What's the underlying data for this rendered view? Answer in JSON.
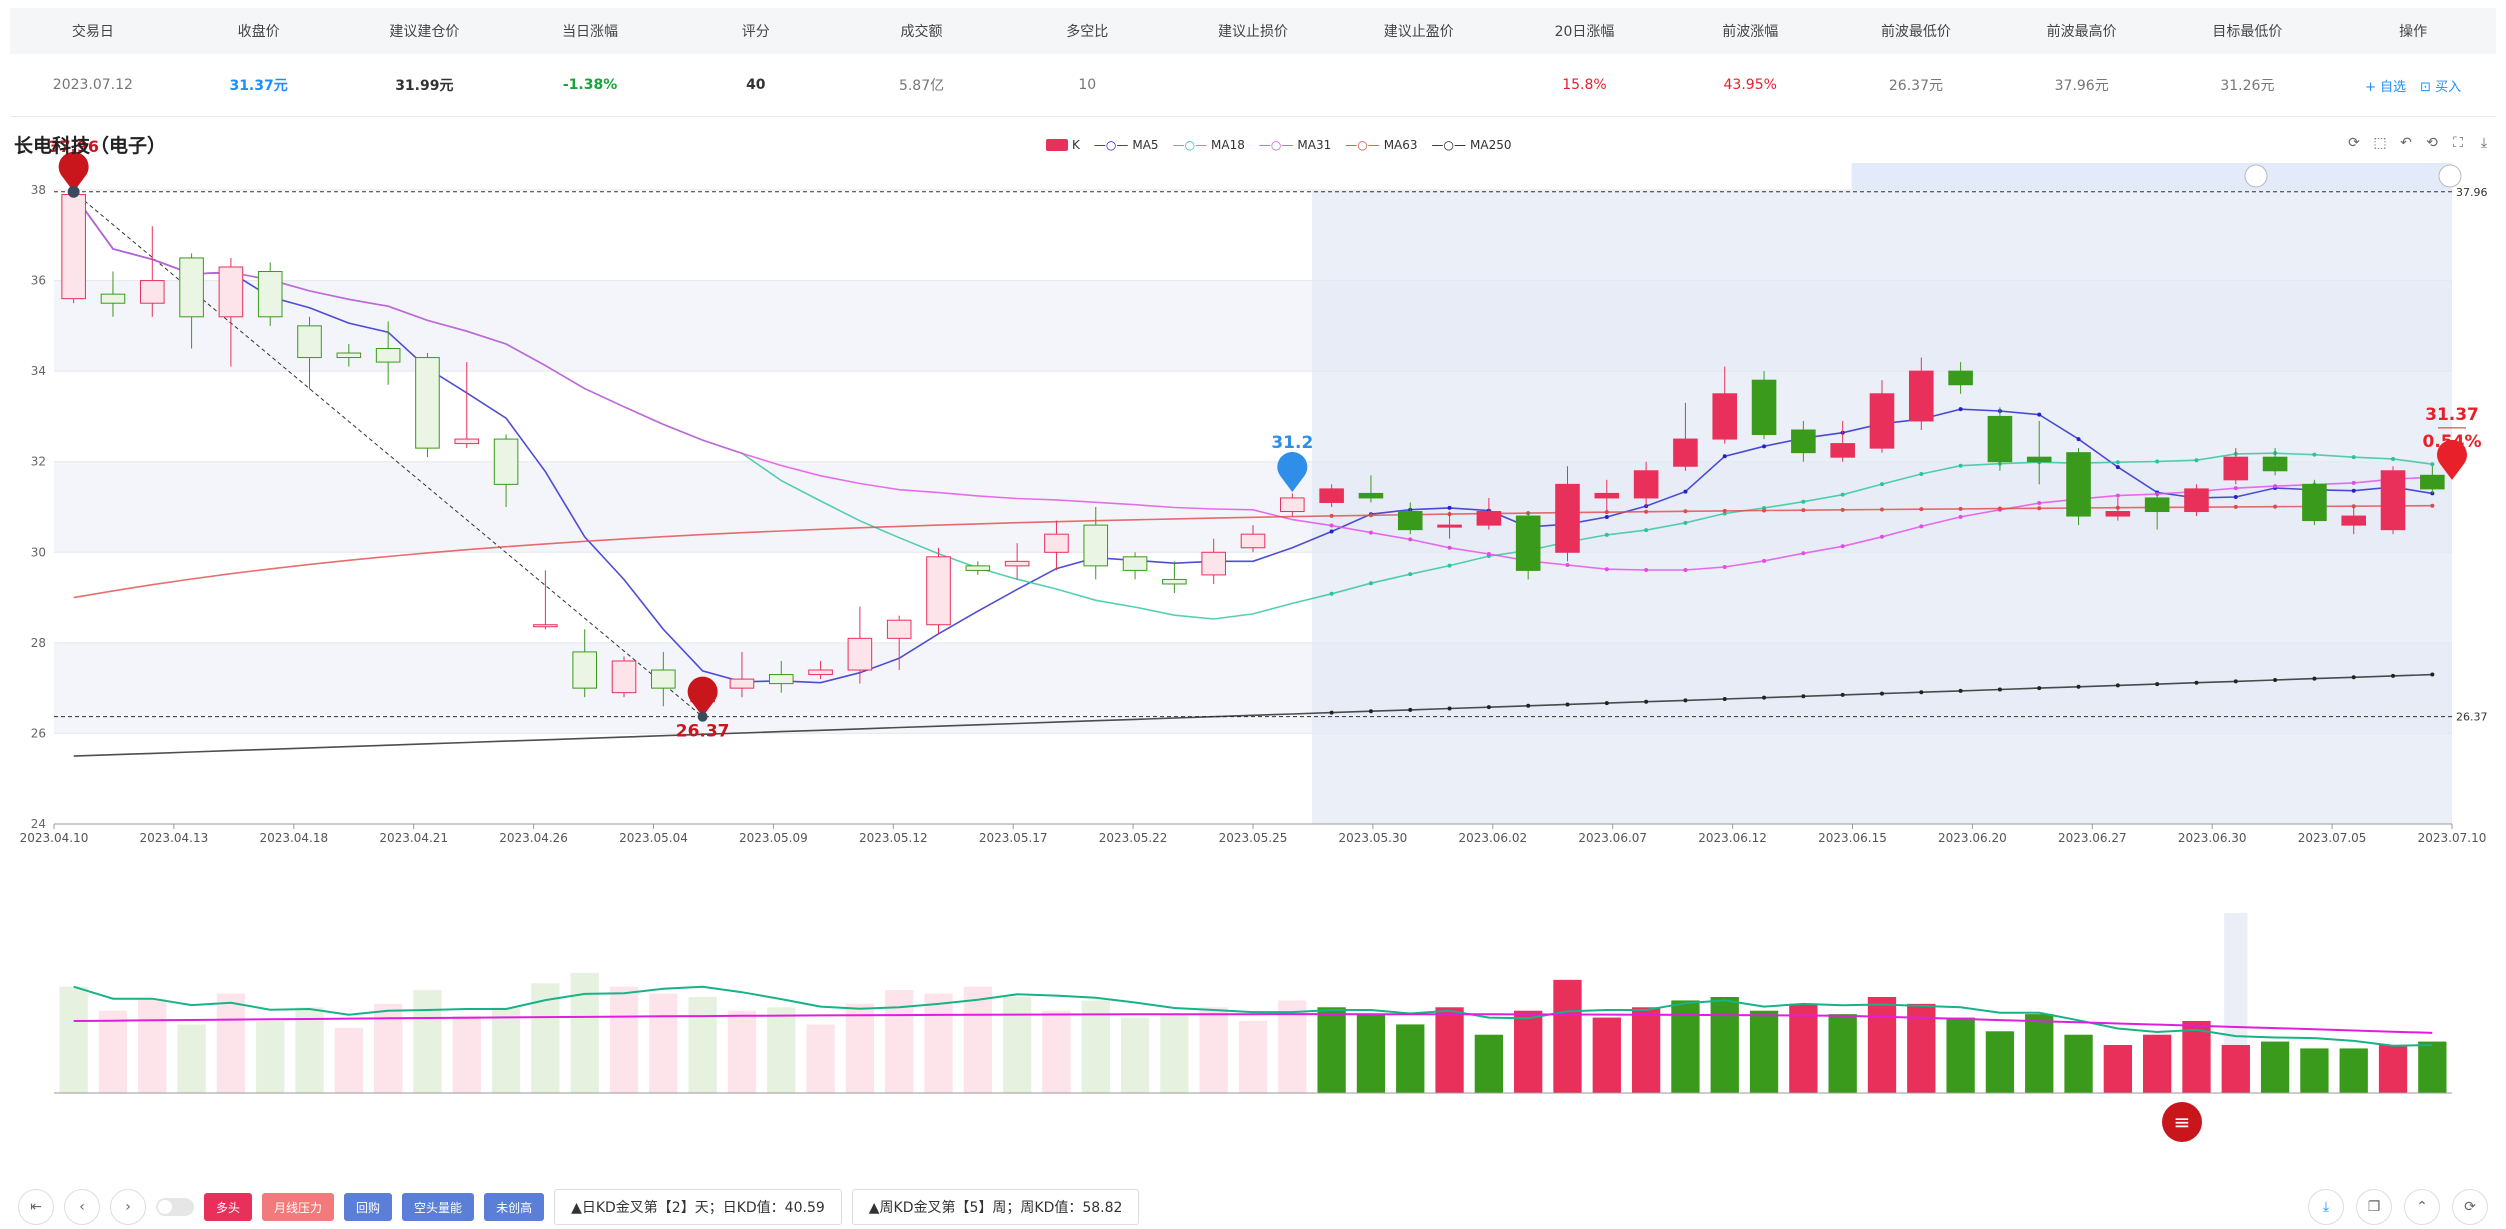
{
  "table": {
    "headers": [
      "交易日",
      "收盘价",
      "建议建仓价",
      "当日涨幅",
      "评分",
      "成交额",
      "多空比",
      "建议止损价",
      "建议止盈价",
      "20日涨幅",
      "前波涨幅",
      "前波最低价",
      "前波最高价",
      "目标最低价",
      "操作"
    ],
    "row": {
      "trade_date": "2023.07.12",
      "close": "31.37元",
      "build_price": "31.99元",
      "day_change": "-1.38%",
      "score": "40",
      "turnover": "5.87亿",
      "long_short": "10",
      "stop_loss": "",
      "take_profit": "",
      "change_20d": "15.8%",
      "prev_wave_change": "43.95%",
      "prev_low": "26.37元",
      "prev_high": "37.96元",
      "target_low": "31.26元",
      "add_watch": "+ 自选",
      "buy": "买入"
    }
  },
  "chart_title": "长电科技（电子）",
  "legend": [
    "K",
    "MA5",
    "MA18",
    "MA31",
    "MA63",
    "MA250"
  ],
  "colors": {
    "up": "#e8305b",
    "down": "#3a9a1c",
    "ma5": "#2222cc",
    "ma18": "#2ac49a",
    "ma31": "#e24be6",
    "ma63": "#e14a4a",
    "ma250": "#222222"
  },
  "chart_data": {
    "type": "candlestick",
    "title": "长电科技（电子）",
    "ylim": [
      24,
      38
    ],
    "yticks": [
      24,
      26,
      28,
      30,
      32,
      34,
      36,
      38
    ],
    "x_tick_labels": [
      "2023.04.10",
      "2023.04.13",
      "2023.04.18",
      "2023.04.21",
      "2023.04.26",
      "2023.05.04",
      "2023.05.09",
      "2023.05.12",
      "2023.05.17",
      "2023.05.22",
      "2023.05.25",
      "2023.05.30",
      "2023.06.02",
      "2023.06.07",
      "2023.06.12",
      "2023.06.15",
      "2023.06.20",
      "2023.06.27",
      "2023.06.30",
      "2023.07.05",
      "2023.07.10"
    ],
    "candles": [
      [
        35.6,
        37.9,
        38.0,
        35.5
      ],
      [
        35.7,
        35.5,
        36.2,
        35.2
      ],
      [
        35.5,
        36.0,
        37.2,
        35.2
      ],
      [
        36.5,
        35.2,
        36.6,
        34.5
      ],
      [
        35.2,
        36.3,
        36.5,
        34.1
      ],
      [
        36.2,
        35.2,
        36.4,
        35.0
      ],
      [
        35.0,
        34.3,
        35.2,
        33.6
      ],
      [
        34.4,
        34.3,
        34.6,
        34.1
      ],
      [
        34.5,
        34.2,
        35.1,
        33.7
      ],
      [
        34.3,
        32.3,
        34.4,
        32.1
      ],
      [
        32.4,
        32.5,
        34.2,
        32.3
      ],
      [
        32.5,
        31.5,
        32.6,
        31.0
      ],
      [
        28.4,
        28.4,
        29.6,
        28.3
      ],
      [
        27.8,
        27.0,
        28.3,
        26.8
      ],
      [
        26.9,
        27.6,
        27.7,
        26.8
      ],
      [
        27.4,
        27.0,
        27.8,
        26.6
      ],
      [
        26.7,
        26.9,
        27.2,
        26.6
      ],
      [
        27.0,
        27.2,
        27.8,
        26.8
      ],
      [
        27.3,
        27.1,
        27.6,
        26.9
      ],
      [
        27.3,
        27.4,
        27.6,
        27.2
      ],
      [
        27.4,
        28.1,
        28.8,
        27.1
      ],
      [
        28.1,
        28.5,
        28.6,
        27.4
      ],
      [
        28.4,
        29.9,
        30.1,
        28.2
      ],
      [
        29.7,
        29.6,
        29.8,
        29.5
      ],
      [
        29.7,
        29.8,
        30.2,
        29.4
      ],
      [
        30.0,
        30.4,
        30.7,
        29.6
      ],
      [
        30.6,
        29.7,
        31.0,
        29.4
      ],
      [
        29.9,
        29.6,
        30.0,
        29.4
      ],
      [
        29.4,
        29.3,
        29.8,
        29.1
      ],
      [
        29.5,
        30.0,
        30.3,
        29.3
      ],
      [
        30.1,
        30.4,
        30.6,
        30.0
      ],
      [
        30.9,
        31.2,
        31.3,
        30.8
      ],
      [
        31.1,
        31.4,
        31.5,
        31.0
      ],
      [
        31.3,
        31.2,
        31.7,
        31.1
      ],
      [
        30.9,
        30.5,
        31.1,
        30.4
      ],
      [
        30.6,
        30.6,
        30.9,
        30.3
      ],
      [
        30.6,
        30.9,
        31.2,
        30.5
      ],
      [
        30.8,
        29.6,
        30.9,
        29.4
      ],
      [
        30.0,
        31.5,
        31.9,
        29.8
      ],
      [
        31.2,
        31.3,
        31.6,
        30.9
      ],
      [
        31.2,
        31.8,
        32.0,
        31.0
      ],
      [
        31.9,
        32.5,
        33.3,
        31.8
      ],
      [
        32.5,
        33.5,
        34.1,
        32.4
      ],
      [
        33.8,
        32.6,
        34.0,
        32.5
      ],
      [
        32.7,
        32.2,
        32.9,
        32.0
      ],
      [
        32.1,
        32.4,
        32.9,
        32.0
      ],
      [
        32.3,
        33.5,
        33.8,
        32.2
      ],
      [
        32.9,
        34.0,
        34.3,
        32.7
      ],
      [
        34.0,
        33.7,
        34.2,
        33.5
      ],
      [
        33.0,
        32.0,
        33.2,
        31.8
      ],
      [
        32.1,
        32.0,
        32.9,
        31.5
      ],
      [
        32.2,
        30.8,
        32.3,
        30.6
      ],
      [
        30.8,
        30.9,
        31.2,
        30.7
      ],
      [
        31.2,
        30.9,
        31.3,
        30.5
      ],
      [
        30.9,
        31.4,
        31.5,
        30.8
      ],
      [
        31.6,
        32.1,
        32.3,
        31.5
      ],
      [
        32.1,
        31.8,
        32.3,
        31.7
      ],
      [
        31.5,
        30.7,
        31.6,
        30.6
      ],
      [
        30.6,
        30.8,
        31.0,
        30.4
      ],
      [
        30.5,
        31.8,
        31.9,
        30.4
      ],
      [
        31.7,
        31.4,
        31.9,
        31.3
      ]
    ],
    "highlight_start_index": 32,
    "annotations": {
      "high": "37.96",
      "low": "26.37",
      "mark": "31.2",
      "last_price": "31.37",
      "last_change": "0.54%",
      "top_left_label": "37.96"
    },
    "volume": [
      62,
      48,
      55,
      40,
      58,
      42,
      50,
      38,
      52,
      60,
      45,
      50,
      64,
      70,
      62,
      58,
      56,
      48,
      50,
      40,
      52,
      60,
      58,
      62,
      56,
      48,
      54,
      44,
      46,
      50,
      42,
      54,
      50,
      46,
      40,
      50,
      34,
      48,
      66,
      44,
      50,
      54,
      56,
      48,
      52,
      46,
      56,
      52,
      44,
      36,
      46,
      34,
      28,
      34,
      42,
      28,
      30,
      26,
      26,
      28,
      30
    ],
    "volume_up": [
      0,
      1,
      1,
      0,
      1,
      0,
      0,
      1,
      1,
      0,
      1,
      0,
      0,
      0,
      1,
      1,
      0,
      1,
      0,
      1,
      1,
      1,
      1,
      1,
      0,
      1,
      0,
      0,
      0,
      1,
      1,
      1,
      0,
      0,
      0,
      1,
      0,
      1,
      1,
      1,
      1,
      0,
      0,
      0,
      1,
      0,
      1,
      1,
      0,
      0,
      0,
      0,
      1,
      1,
      1,
      1,
      0,
      0,
      0,
      1,
      0
    ]
  },
  "bottom": {
    "tags": [
      "多头",
      "月线压力",
      "回购",
      "空头量能",
      "未创高"
    ],
    "info1": "▲日KD金叉第【2】天；日KD值：40.59",
    "info2": "▲周KD金叉第【5】周；周KD值：58.82"
  }
}
